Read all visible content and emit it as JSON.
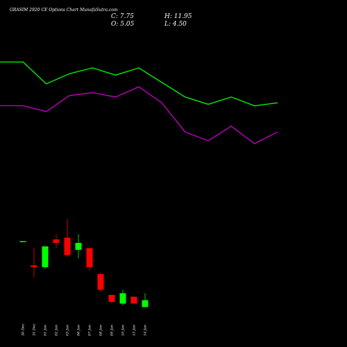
{
  "header": {
    "title": "GRASIM 2920  CE Options  Chart MunafaSutra.com",
    "close": "C: 7.75",
    "high": "H: 11.95",
    "open": "O: 5.05",
    "low": "L: 4.50"
  },
  "colors": {
    "background": "#000000",
    "bullish": "#00ff00",
    "bearish": "#ff0000",
    "upper_line": "#00ff00",
    "lower_line": "#cc00cc",
    "text": "#ffffff"
  },
  "chart_data": [
    {
      "type": "line",
      "series": [
        {
          "color": "#00ff00",
          "values": [
            14,
            14,
            29,
            22,
            18,
            23,
            18,
            28,
            38,
            43,
            38,
            44,
            42
          ]
        },
        {
          "color": "#cc00cc",
          "values": [
            44,
            44,
            48,
            37,
            35,
            38,
            31,
            42,
            62,
            68,
            58,
            70,
            62
          ]
        }
      ],
      "grid": false,
      "axes_visible": false
    },
    {
      "type": "candlestick",
      "categories": [
        "30 Dec",
        "31 Dec",
        "01 Jan",
        "02 Jan",
        "03 Jan",
        "06 Jan",
        "07 Jan",
        "08 Jan",
        "09 Jan",
        "10 Jan",
        "13 Jan",
        "14 Jan"
      ],
      "ohlc": [
        {
          "date": "30 Dec",
          "open": 51,
          "high": 51,
          "low": 51,
          "close": 51,
          "direction": "up"
        },
        {
          "date": "31 Dec",
          "open": 37,
          "high": 47,
          "low": 30,
          "close": 36,
          "direction": "down"
        },
        {
          "date": "01 Jan",
          "open": 36,
          "high": 48,
          "low": 35,
          "close": 48,
          "direction": "up"
        },
        {
          "date": "02 Jan",
          "open": 52,
          "high": 55,
          "low": 47,
          "close": 50,
          "direction": "down"
        },
        {
          "date": "03 Jan",
          "open": 53,
          "high": 64,
          "low": 42,
          "close": 43,
          "direction": "down"
        },
        {
          "date": "06 Jan",
          "open": 46,
          "high": 55,
          "low": 41,
          "close": 50,
          "direction": "up"
        },
        {
          "date": "07 Jan",
          "open": 47,
          "high": 47,
          "low": 34,
          "close": 36,
          "direction": "down"
        },
        {
          "date": "08 Jan",
          "open": 32,
          "high": 33,
          "low": 22,
          "close": 23,
          "direction": "down"
        },
        {
          "date": "09 Jan",
          "open": 20,
          "high": 20,
          "low": 15,
          "close": 16,
          "direction": "down"
        },
        {
          "date": "10 Jan",
          "open": 15,
          "high": 23,
          "low": 14,
          "close": 21,
          "direction": "up"
        },
        {
          "date": "13 Jan",
          "open": 19,
          "high": 19,
          "low": 15,
          "close": 15,
          "direction": "down"
        },
        {
          "date": "14 Jan",
          "open": 13,
          "high": 21,
          "low": 13,
          "close": 17,
          "direction": "up"
        }
      ],
      "grid": false,
      "axes_visible": false
    }
  ]
}
